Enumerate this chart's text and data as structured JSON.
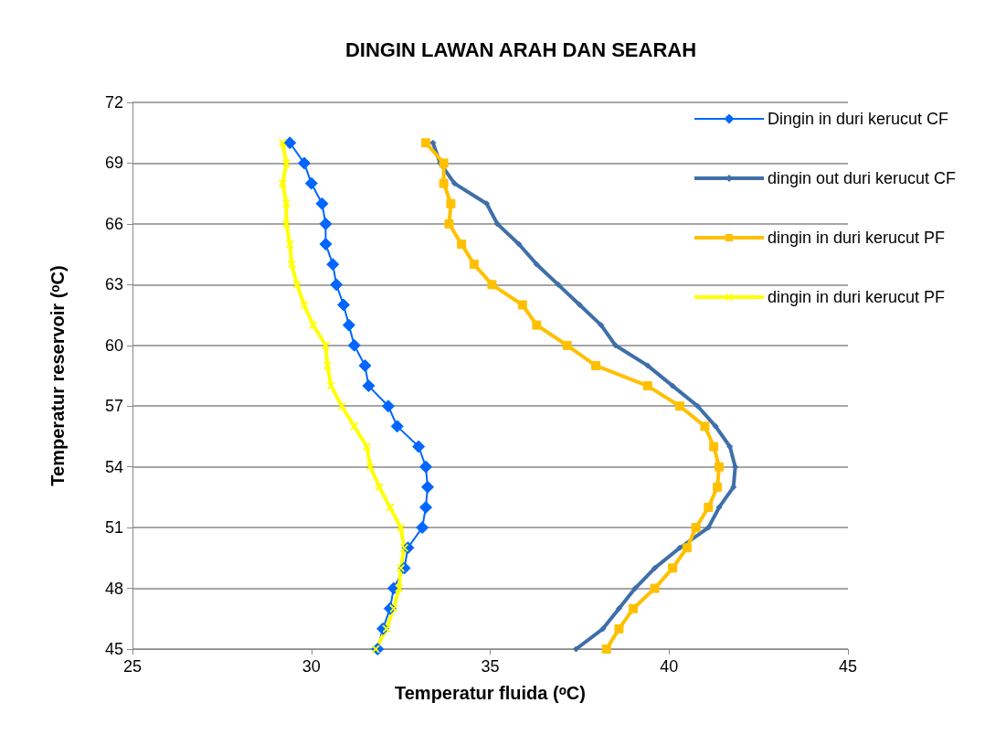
{
  "chart_data": {
    "type": "line",
    "title": "DINGIN LAWAN ARAH DAN SEARAH",
    "xlabel": "Temperatur fluida (ᵒC)",
    "ylabel": "Temperatur reservoir (ᵒC)",
    "xlim": [
      25,
      45
    ],
    "xticks": [
      25,
      30,
      35,
      40,
      45
    ],
    "ylim": [
      45,
      72
    ],
    "yticks": [
      45,
      48,
      51,
      54,
      57,
      60,
      63,
      66,
      69,
      72
    ],
    "grid": "y",
    "legend": "top right",
    "series": [
      {
        "name": "Dingin in duri kerucut CF",
        "color": "#0066ff",
        "marker": "diamond",
        "x": [
          29.4,
          29.8,
          30.0,
          30.3,
          30.4,
          30.4,
          30.6,
          30.7,
          30.9,
          31.05,
          31.2,
          31.5,
          31.6,
          32.15,
          32.4,
          33.0,
          33.2,
          33.25,
          33.2,
          33.1,
          32.7,
          32.6,
          32.3,
          32.2,
          32.0,
          31.85
        ],
        "values": [
          70,
          69,
          68,
          67,
          66,
          65,
          64,
          63,
          62,
          61,
          60,
          59,
          58,
          57,
          56,
          55,
          54,
          53,
          52,
          51,
          50,
          49,
          48,
          47,
          46,
          45
        ]
      },
      {
        "name": "dingin out duri kerucut CF",
        "color": "#3f6fa8",
        "marker": "diamond",
        "x": [
          33.4,
          33.6,
          34.0,
          34.9,
          35.2,
          35.8,
          36.3,
          36.9,
          37.5,
          38.1,
          38.5,
          39.4,
          40.1,
          40.8,
          41.3,
          41.7,
          41.85,
          41.8,
          41.4,
          41.1,
          40.3,
          39.6,
          39.05,
          38.6,
          38.15,
          37.4
        ],
        "values": [
          70,
          69,
          68,
          67,
          66,
          65,
          64,
          63,
          62,
          61,
          60,
          59,
          58,
          57,
          56,
          55,
          54,
          53,
          52,
          51,
          50,
          49,
          48,
          47,
          46,
          45
        ]
      },
      {
        "name": "dingin in duri kerucut PF",
        "color": "#ffc000",
        "marker": "square",
        "x": [
          33.2,
          33.7,
          33.7,
          33.9,
          33.85,
          34.2,
          34.55,
          35.05,
          35.9,
          36.3,
          37.15,
          37.95,
          39.4,
          40.3,
          41.0,
          41.25,
          41.4,
          41.35,
          41.1,
          40.75,
          40.5,
          40.1,
          39.6,
          39.0,
          38.6,
          38.25
        ],
        "values": [
          70,
          69,
          68,
          67,
          66,
          65,
          64,
          63,
          62,
          61,
          60,
          59,
          58,
          57,
          56,
          55,
          54,
          53,
          52,
          51,
          50,
          49,
          48,
          47,
          46,
          45
        ]
      },
      {
        "name": "dingin in duri kerucut PF",
        "color": "#ffff00",
        "marker": "cross",
        "x": [
          29.2,
          29.3,
          29.2,
          29.3,
          29.3,
          29.4,
          29.45,
          29.6,
          29.8,
          30.05,
          30.4,
          30.45,
          30.55,
          30.85,
          31.2,
          31.55,
          31.65,
          31.9,
          32.2,
          32.5,
          32.6,
          32.5,
          32.45,
          32.3,
          32.1,
          31.8
        ],
        "values": [
          70,
          69,
          68,
          67,
          66,
          65,
          64,
          63,
          62,
          61,
          60,
          59,
          58,
          57,
          56,
          55,
          54,
          53,
          52,
          51,
          50,
          49,
          48,
          47,
          46,
          45
        ]
      }
    ]
  }
}
